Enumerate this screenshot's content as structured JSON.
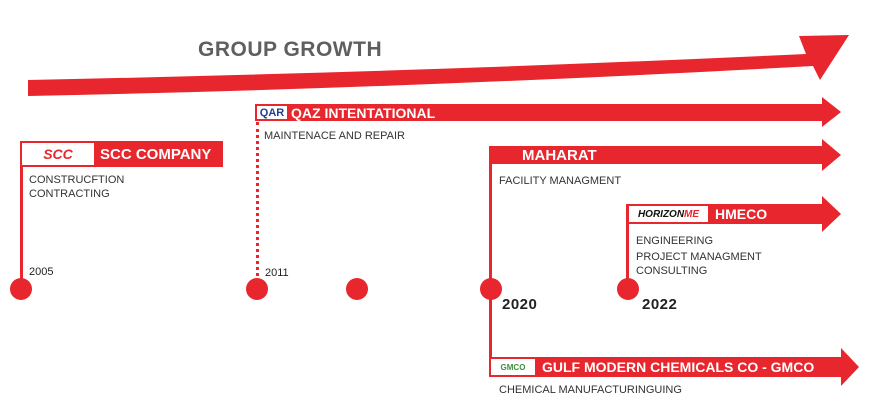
{
  "title": "GROUP GROWTH",
  "companies": {
    "scc": {
      "logo_text": "SCC",
      "name": "SCC COMPANY",
      "desc1": "CONSTRUCFTION",
      "desc2": "CONTRACTING",
      "year": "2005"
    },
    "qaz": {
      "logo_text": "QAR",
      "name": "QAZ INTENTATIONAL",
      "desc1": "MAINTENACE AND REPAIR",
      "year": "2011"
    },
    "maharat": {
      "name": "MAHARAT",
      "desc1": "FACILITY MANAGMENT",
      "year": "2020"
    },
    "hmeco": {
      "logo_text_a": "HORIZON",
      "logo_text_b": "ME",
      "name": "HMECO",
      "desc1": "ENGINEERING",
      "desc2": "PROJECT MANAGMENT",
      "desc3": "CONSULTING",
      "year": "2022"
    },
    "gmco": {
      "logo_text": "GMCO",
      "name": "GULF MODERN CHEMICALS CO - GMCO",
      "desc1": "CHEMICAL MANUFACTURINGUING"
    }
  },
  "colors": {
    "accent": "#e8262d",
    "title": "#5f5f5f"
  }
}
